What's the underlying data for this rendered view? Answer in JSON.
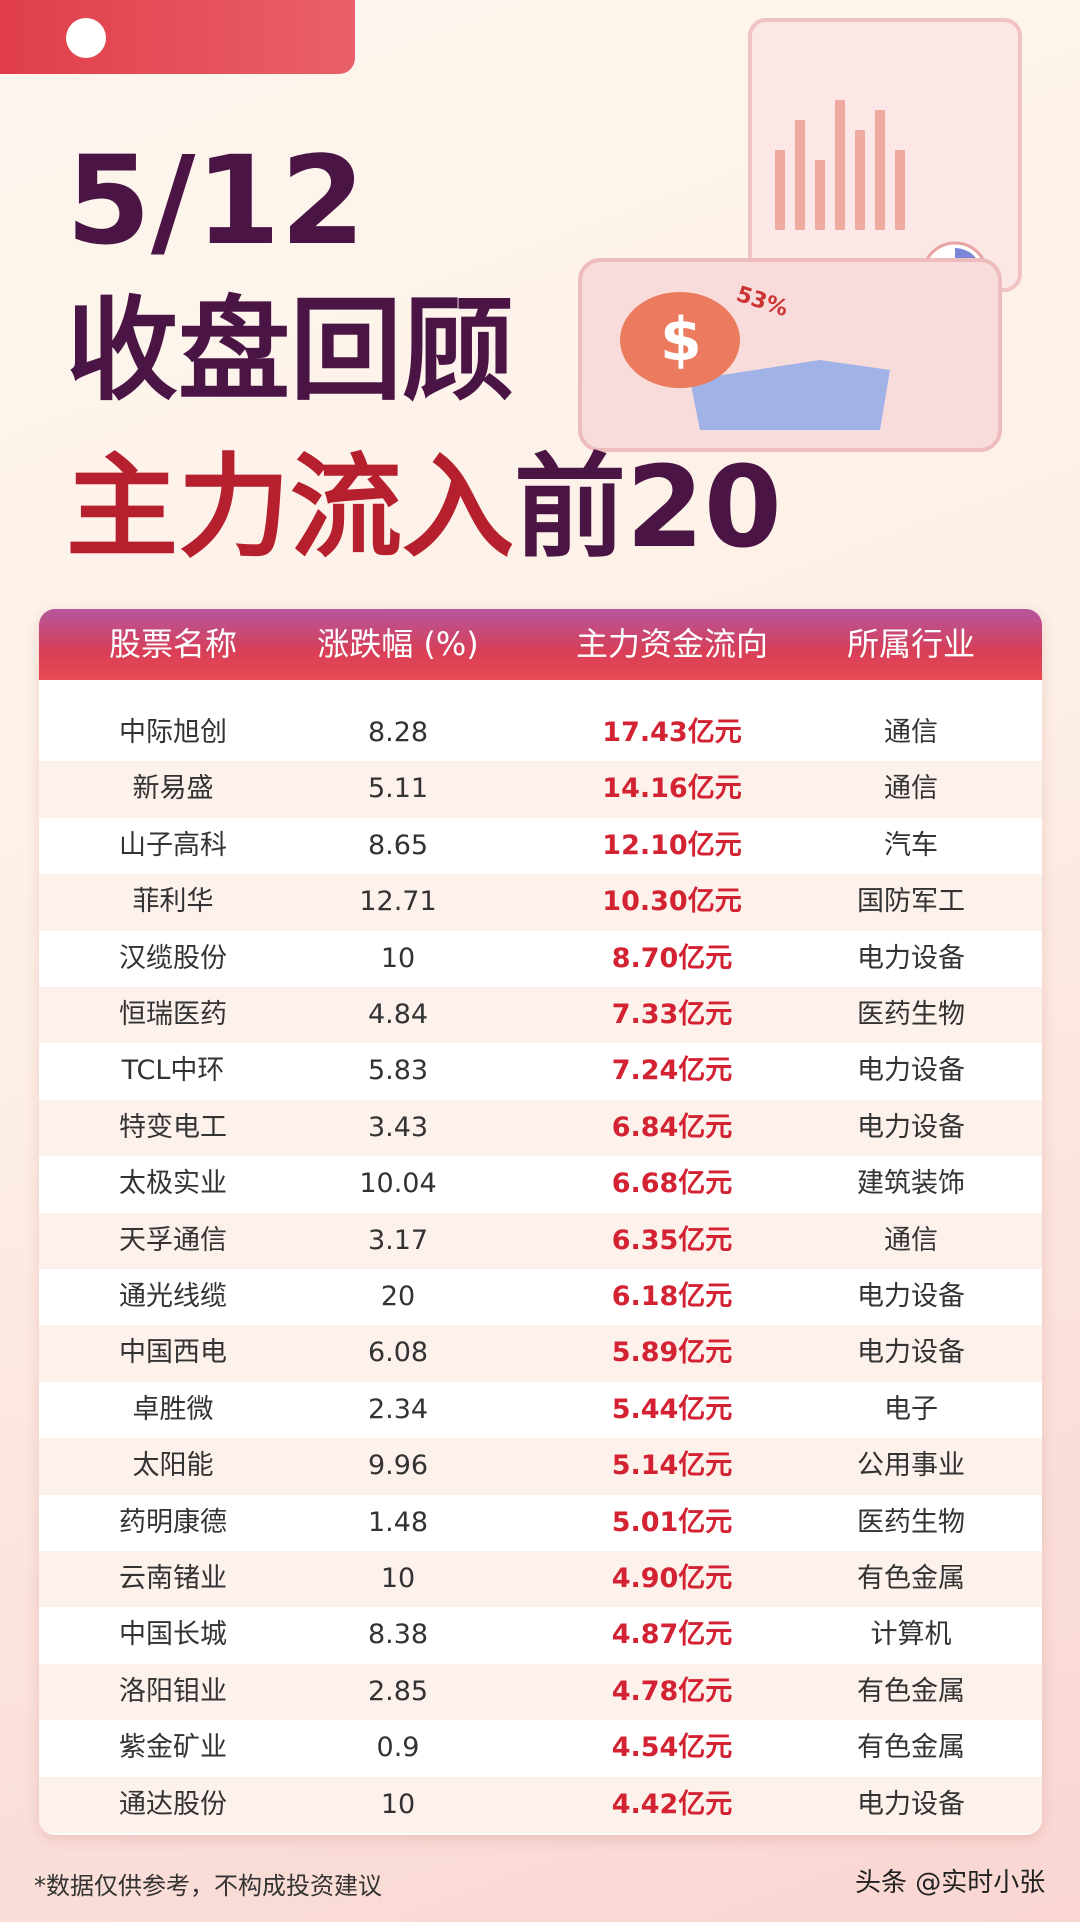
{
  "header": {
    "date": "5/12",
    "title": "收盘回顾",
    "subtitle_red": "主力流入",
    "subtitle_dark": "前20",
    "illustration_label": "53%"
  },
  "table": {
    "columns": [
      "股票名称",
      "涨跌幅 (%)",
      "主力资金流向",
      "所属行业"
    ],
    "rows": [
      [
        "中际旭创",
        8.28,
        "17.43亿元",
        "通信"
      ],
      [
        "新易盛",
        5.11,
        "14.16亿元",
        "通信"
      ],
      [
        "山子高科",
        8.65,
        "12.10亿元",
        "汽车"
      ],
      [
        "菲利华",
        12.71,
        "10.30亿元",
        "国防军工"
      ],
      [
        "汉缆股份",
        10,
        "8.70亿元",
        "电力设备"
      ],
      [
        "恒瑞医药",
        4.84,
        "7.33亿元",
        "医药生物"
      ],
      [
        "TCL中环",
        5.83,
        "7.24亿元",
        "电力设备"
      ],
      [
        "特变电工",
        3.43,
        "6.84亿元",
        "电力设备"
      ],
      [
        "太极实业",
        10.04,
        "6.68亿元",
        "建筑装饰"
      ],
      [
        "天孚通信",
        3.17,
        "6.35亿元",
        "通信"
      ],
      [
        "通光线缆",
        20,
        "6.18亿元",
        "电力设备"
      ],
      [
        "中国西电",
        6.08,
        "5.89亿元",
        "电力设备"
      ],
      [
        "卓胜微",
        2.34,
        "5.44亿元",
        "电子"
      ],
      [
        "太阳能",
        9.96,
        "5.14亿元",
        "公用事业"
      ],
      [
        "药明康德",
        1.48,
        "5.01亿元",
        "医药生物"
      ],
      [
        "云南锗业",
        10,
        "4.90亿元",
        "有色金属"
      ],
      [
        "中国长城",
        8.38,
        "4.87亿元",
        "计算机"
      ],
      [
        "洛阳钼业",
        2.85,
        "4.78亿元",
        "有色金属"
      ],
      [
        "紫金矿业",
        0.9,
        "4.54亿元",
        "有色金属"
      ],
      [
        "通达股份",
        10,
        "4.42亿元",
        "电力设备"
      ]
    ]
  },
  "footer": {
    "disclaimer": "*数据仅供参考，不构成投资建议",
    "watermark": "头条 @实时小张"
  }
}
